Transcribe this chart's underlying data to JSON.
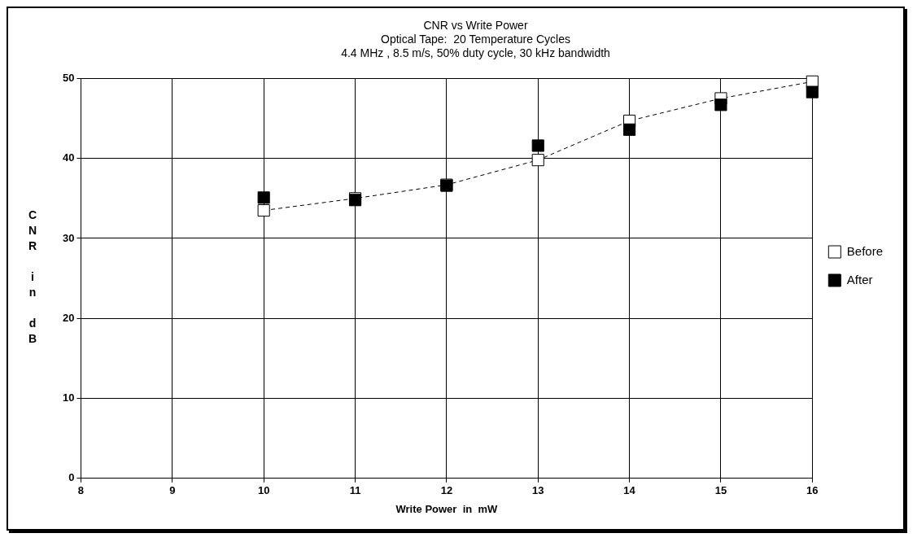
{
  "chart_data": {
    "type": "line",
    "title": "CNR vs Write Power",
    "subtitle": "Optical Tape:  20 Temperature Cycles\n4.4 MHz , 8.5 m/s, 50% duty cycle, 30 kHz bandwidth",
    "xlabel": "Write Power  in  mW",
    "ylabel": "CNR in dB",
    "x": [
      10,
      11,
      12,
      13,
      14,
      15,
      16
    ],
    "series": [
      {
        "name": "Before",
        "color": "#ffffff",
        "line_style": "dashed",
        "marker": "square",
        "values": [
          33.5,
          35,
          36.7,
          39.8,
          44.7,
          47.5,
          49.6
        ]
      },
      {
        "name": "After",
        "color": "#000000",
        "type": "scatter",
        "marker": "square",
        "values": [
          35.1,
          34.8,
          36.6,
          41.6,
          43.6,
          46.7,
          48.3
        ]
      }
    ],
    "xlim": [
      8,
      16
    ],
    "xticks": [
      8,
      9,
      10,
      11,
      12,
      13,
      14,
      15,
      16
    ],
    "ylim": [
      0,
      50
    ],
    "yticks": [
      0,
      10,
      20,
      30,
      40,
      50
    ],
    "grid": true,
    "legend": "right"
  }
}
